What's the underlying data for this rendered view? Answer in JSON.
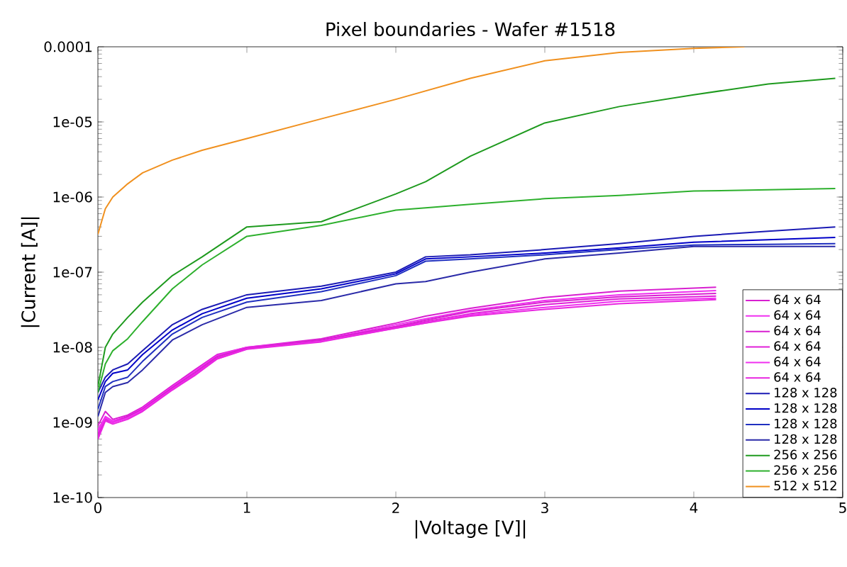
{
  "chart_data": {
    "type": "line",
    "title": "Pixel boundaries - Wafer #1518",
    "xlabel": "|Voltage [V]|",
    "ylabel": "|Current [A]|",
    "log": "y",
    "grid": false,
    "legend": "bottom right",
    "marker": "none",
    "line_style": "solid",
    "xlim": [
      0,
      5
    ],
    "xticks": [
      0,
      1,
      2,
      3,
      4,
      5
    ],
    "ylim": [
      1e-10,
      0.0001
    ],
    "yticks": [
      {
        "value": 1e-10,
        "label": "1e-10"
      },
      {
        "value": 1e-09,
        "label": "1e-09"
      },
      {
        "value": 1e-08,
        "label": "1e-08"
      },
      {
        "value": 1e-07,
        "label": "1e-07"
      },
      {
        "value": 1e-06,
        "label": "1e-06"
      },
      {
        "value": 1e-05,
        "label": "1e-05"
      },
      {
        "value": 0.0001,
        "label": "0.0001"
      }
    ],
    "x": [
      0,
      0.05,
      0.1,
      0.2,
      0.3,
      0.5,
      0.7,
      1,
      1.5,
      2,
      2.2,
      2.5,
      3,
      3.5,
      4,
      4.5,
      4.95
    ],
    "series": [
      {
        "name": "64 x 64",
        "color": "#d81fd0",
        "x": [
          0,
          0.05,
          0.1,
          0.2,
          0.3,
          0.5,
          0.65,
          0.8,
          1,
          1.5,
          2,
          2.2,
          2.5,
          3,
          3.5,
          4.15
        ],
        "values": [
          9e-10,
          1.4e-09,
          1.1e-09,
          1.25e-09,
          1.6e-09,
          3.1e-09,
          5e-09,
          8e-09,
          1e-08,
          1.3e-08,
          2.1e-08,
          2.6e-08,
          3.3e-08,
          4.6e-08,
          5.6e-08,
          6.3e-08
        ]
      },
      {
        "name": "64 x 64",
        "color": "#f030f0",
        "x": [
          0,
          0.05,
          0.1,
          0.2,
          0.3,
          0.5,
          0.65,
          0.8,
          1,
          1.5,
          2,
          2.2,
          2.5,
          3,
          3.5,
          4.15
        ],
        "values": [
          8e-10,
          1.2e-09,
          1.05e-09,
          1.2e-09,
          1.55e-09,
          3e-09,
          4.8e-09,
          7.8e-09,
          1e-08,
          1.25e-08,
          2e-08,
          2.4e-08,
          3.1e-08,
          4.2e-08,
          5e-08,
          5.7e-08
        ]
      },
      {
        "name": "64 x 64",
        "color": "#d81fd0",
        "x": [
          0,
          0.05,
          0.1,
          0.2,
          0.3,
          0.5,
          0.65,
          0.8,
          1,
          1.5,
          2,
          2.2,
          2.5,
          3,
          3.5,
          4.15
        ],
        "values": [
          7e-10,
          1.1e-09,
          1e-09,
          1.2e-09,
          1.5e-09,
          2.9e-09,
          4.6e-09,
          7.5e-09,
          9.8e-09,
          1.25e-08,
          1.9e-08,
          2.3e-08,
          3e-08,
          4e-08,
          4.7e-08,
          5.2e-08
        ]
      },
      {
        "name": "64 x 64",
        "color": "#e020d8",
        "x": [
          0,
          0.05,
          0.1,
          0.2,
          0.3,
          0.5,
          0.65,
          0.8,
          1,
          1.5,
          2,
          2.2,
          2.5,
          3,
          3.5,
          4.15
        ],
        "values": [
          6.5e-10,
          1.1e-09,
          1e-09,
          1.15e-09,
          1.45e-09,
          2.8e-09,
          4.4e-09,
          7.2e-09,
          9.6e-09,
          1.2e-08,
          1.85e-08,
          2.2e-08,
          2.8e-08,
          3.7e-08,
          4.4e-08,
          4.8e-08
        ]
      },
      {
        "name": "64 x 64",
        "color": "#f030f0",
        "x": [
          0,
          0.05,
          0.1,
          0.2,
          0.3,
          0.5,
          0.65,
          0.8,
          1,
          1.5,
          2,
          2.2,
          2.5,
          3,
          3.5,
          4.15
        ],
        "values": [
          7.5e-10,
          1.15e-09,
          1e-09,
          1.15e-09,
          1.45e-09,
          2.75e-09,
          4.3e-09,
          7e-09,
          9.5e-09,
          1.2e-08,
          1.8e-08,
          2.1e-08,
          2.7e-08,
          3.4e-08,
          4.1e-08,
          4.5e-08
        ]
      },
      {
        "name": "64 x 64",
        "color": "#e826e0",
        "x": [
          0,
          0.05,
          0.1,
          0.2,
          0.3,
          0.5,
          0.65,
          0.8,
          1,
          1.5,
          2,
          2.2,
          2.5,
          3,
          3.5,
          4.15
        ],
        "values": [
          6e-10,
          1.05e-09,
          9.5e-10,
          1.1e-09,
          1.4e-09,
          2.7e-09,
          4.2e-09,
          7e-09,
          9.4e-09,
          1.18e-08,
          1.8e-08,
          2.1e-08,
          2.6e-08,
          3.2e-08,
          3.8e-08,
          4.3e-08
        ]
      },
      {
        "name": "128 x 128",
        "color": "#1a1ab4",
        "values": [
          2.5e-09,
          4e-09,
          5e-09,
          6e-09,
          9e-09,
          2e-08,
          3.2e-08,
          5e-08,
          6.5e-08,
          1e-07,
          1.6e-07,
          1.7e-07,
          2e-07,
          2.4e-07,
          3e-07,
          3.5e-07,
          4e-07
        ]
      },
      {
        "name": "128 x 128",
        "color": "#0000c8",
        "values": [
          2e-09,
          3.5e-09,
          4.5e-09,
          5e-09,
          8e-09,
          1.7e-08,
          2.8e-08,
          4.5e-08,
          6e-08,
          9.5e-08,
          1.5e-07,
          1.6e-07,
          1.8e-07,
          2.1e-07,
          2.5e-07,
          2.7e-07,
          2.9e-07
        ]
      },
      {
        "name": "128 x 128",
        "color": "#2030c0",
        "values": [
          1.5e-09,
          3e-09,
          3.5e-09,
          4e-09,
          6.5e-09,
          1.5e-08,
          2.5e-08,
          4e-08,
          5.5e-08,
          9e-08,
          1.4e-07,
          1.5e-07,
          1.7e-07,
          2e-07,
          2.3e-07,
          2.35e-07,
          2.4e-07
        ]
      },
      {
        "name": "128 x 128",
        "color": "#2a2aa8",
        "values": [
          1.2e-09,
          2.5e-09,
          3e-09,
          3.4e-09,
          5e-09,
          1.25e-08,
          2e-08,
          3.4e-08,
          4.2e-08,
          7e-08,
          7.5e-08,
          1e-07,
          1.5e-07,
          1.8e-07,
          2.2e-07,
          2.2e-07,
          2.2e-07
        ]
      },
      {
        "name": "256 x 256",
        "color": "#1e9a1e",
        "values": [
          3e-09,
          1e-08,
          1.5e-08,
          2.5e-08,
          4e-08,
          9e-08,
          1.6e-07,
          4e-07,
          4.7e-07,
          1.1e-06,
          1.6e-06,
          3.5e-06,
          9.7e-06,
          1.6e-05,
          2.3e-05,
          3.2e-05,
          3.8e-05
        ]
      },
      {
        "name": "256 x 256",
        "color": "#2db02d",
        "values": [
          2.5e-09,
          6e-09,
          9e-09,
          1.3e-08,
          2.2e-08,
          6e-08,
          1.25e-07,
          3e-07,
          4.2e-07,
          6.7e-07,
          7.2e-07,
          8e-07,
          9.5e-07,
          1.05e-06,
          1.2e-06,
          1.25e-06,
          1.3e-06
        ]
      },
      {
        "name": "512 x 512",
        "color": "#f0901e",
        "x": [
          0,
          0.05,
          0.1,
          0.2,
          0.3,
          0.5,
          0.7,
          1,
          1.5,
          2,
          2.5,
          3,
          3.5,
          4,
          4.34
        ],
        "values": [
          3.2e-07,
          7e-07,
          1e-06,
          1.5e-06,
          2.1e-06,
          3.1e-06,
          4.2e-06,
          6e-06,
          1.1e-05,
          2e-05,
          3.8e-05,
          6.5e-05,
          8.4e-05,
          9.5e-05,
          0.0001
        ]
      }
    ]
  }
}
